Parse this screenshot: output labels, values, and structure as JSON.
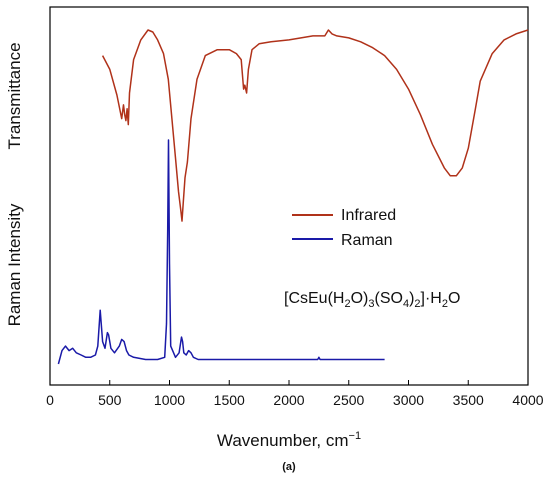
{
  "chart_data": {
    "type": "line",
    "xlabel": "Wavenumber, cm",
    "xlabel_superscript": "−1",
    "ylabels": [
      "Transmittance",
      "Raman Intensity"
    ],
    "xlim": [
      0,
      4000
    ],
    "x_ticks": [
      "0",
      "500",
      "1000",
      "1500",
      "2000",
      "2500",
      "3000",
      "3500",
      "4000"
    ],
    "legend_position": "center-right",
    "colors": {
      "Infrared": "#b0321a",
      "Raman": "#1a1aa8"
    },
    "formula": {
      "parts": [
        {
          "t": "[CsEu(H",
          "s": ""
        },
        {
          "t": "2",
          "s": "sub"
        },
        {
          "t": "O)",
          "s": ""
        },
        {
          "t": "3",
          "s": "sub"
        },
        {
          "t": "(SO",
          "s": ""
        },
        {
          "t": "4",
          "s": "sub"
        },
        {
          "t": ")",
          "s": ""
        },
        {
          "t": "2",
          "s": "sub"
        },
        {
          "t": "]·H",
          "s": ""
        },
        {
          "t": "2",
          "s": "sub"
        },
        {
          "t": "O",
          "s": ""
        }
      ]
    },
    "caption": "(a)",
    "series": [
      {
        "name": "Infrared",
        "note": "y = relative transmittance (0 low, 1 high)",
        "x": [
          440,
          500,
          560,
          600,
          615,
          625,
          635,
          645,
          655,
          665,
          700,
          760,
          820,
          860,
          900,
          950,
          990,
          1020,
          1050,
          1075,
          1095,
          1105,
          1115,
          1130,
          1150,
          1180,
          1230,
          1300,
          1400,
          1500,
          1560,
          1600,
          1620,
          1630,
          1645,
          1660,
          1690,
          1750,
          1850,
          2000,
          2100,
          2200,
          2300,
          2330,
          2360,
          2400,
          2500,
          2600,
          2700,
          2800,
          2900,
          3000,
          3100,
          3200,
          3300,
          3350,
          3400,
          3450,
          3500,
          3560,
          3600,
          3700,
          3800,
          3900,
          4000
        ],
        "y": [
          0.87,
          0.8,
          0.67,
          0.55,
          0.62,
          0.57,
          0.54,
          0.6,
          0.52,
          0.68,
          0.85,
          0.95,
          1.0,
          0.99,
          0.95,
          0.88,
          0.75,
          0.55,
          0.35,
          0.18,
          0.08,
          0.03,
          0.12,
          0.25,
          0.33,
          0.55,
          0.75,
          0.87,
          0.9,
          0.9,
          0.88,
          0.85,
          0.7,
          0.72,
          0.68,
          0.8,
          0.9,
          0.93,
          0.94,
          0.95,
          0.96,
          0.97,
          0.97,
          1.0,
          0.98,
          0.97,
          0.96,
          0.94,
          0.91,
          0.87,
          0.8,
          0.7,
          0.57,
          0.42,
          0.3,
          0.26,
          0.26,
          0.3,
          0.4,
          0.6,
          0.74,
          0.88,
          0.95,
          0.98,
          1.0
        ]
      },
      {
        "name": "Raman",
        "note": "y = relative intensity (0 baseline, 1 max)",
        "x": [
          70,
          100,
          130,
          160,
          190,
          220,
          260,
          300,
          340,
          380,
          400,
          420,
          440,
          460,
          480,
          490,
          510,
          540,
          580,
          600,
          620,
          640,
          660,
          700,
          800,
          900,
          960,
          975,
          985,
          992,
          1000,
          1010,
          1050,
          1080,
          1100,
          1110,
          1120,
          1140,
          1160,
          1180,
          1200,
          1240,
          1300,
          1500,
          2000,
          2240,
          2250,
          2260,
          2300,
          2800
        ],
        "y": [
          0.0,
          0.06,
          0.08,
          0.06,
          0.07,
          0.05,
          0.04,
          0.03,
          0.03,
          0.04,
          0.08,
          0.24,
          0.1,
          0.07,
          0.14,
          0.13,
          0.07,
          0.05,
          0.08,
          0.11,
          0.1,
          0.06,
          0.04,
          0.03,
          0.02,
          0.02,
          0.03,
          0.18,
          0.6,
          1.0,
          0.45,
          0.08,
          0.03,
          0.05,
          0.12,
          0.1,
          0.05,
          0.04,
          0.06,
          0.05,
          0.03,
          0.02,
          0.02,
          0.02,
          0.02,
          0.02,
          0.03,
          0.02,
          0.02,
          0.02
        ]
      }
    ]
  }
}
